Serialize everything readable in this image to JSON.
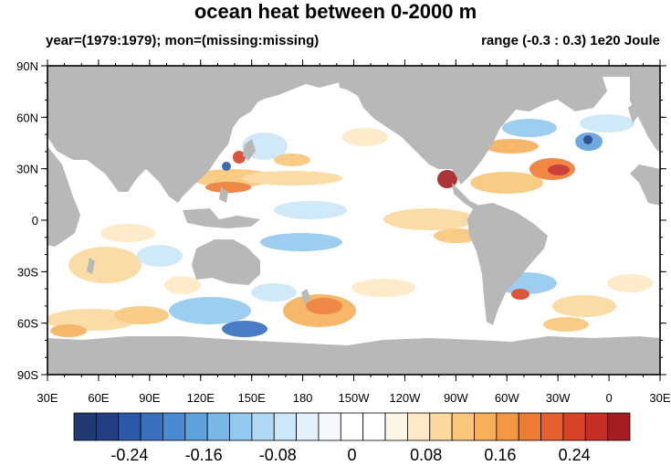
{
  "title": "ocean heat between 0-2000 m",
  "subtitle_left": "year=(1979:1979); mon=(missing:missing)",
  "subtitle_right": "range (-0.3 : 0.3) 1e20 Joule",
  "lat_labels": [
    "90N",
    "60N",
    "30N",
    "0",
    "30S",
    "60S",
    "90S"
  ],
  "lon_labels": [
    "30E",
    "60E",
    "90E",
    "120E",
    "150E",
    "180",
    "150W",
    "120W",
    "90W",
    "60W",
    "30W",
    "0",
    "30E"
  ],
  "colorbar": {
    "colors": [
      "#1e3a6e",
      "#223f83",
      "#2a5aa8",
      "#3670bf",
      "#4a8ad0",
      "#5fa1dc",
      "#78b7e6",
      "#94c9ee",
      "#b0d9f3",
      "#cbe7f8",
      "#e3f1fb",
      "#f5f9fd",
      "#ffffff",
      "#ffffff",
      "#fdf6e6",
      "#fde9c4",
      "#fbd99e",
      "#f9c77a",
      "#f6b05a",
      "#f39743",
      "#ee7b34",
      "#e5602c",
      "#d84327",
      "#c52d25",
      "#a41e21"
    ],
    "tick_labels": [
      "-0.24",
      "-0.16",
      "-0.08",
      "0",
      "0.08",
      "0.16",
      "0.24"
    ],
    "tick_values": [
      -0.24,
      -0.16,
      -0.08,
      0,
      0.08,
      0.16,
      0.24
    ],
    "range": [
      -0.3,
      0.3
    ]
  },
  "colors": {
    "land": "#b8b8b8",
    "ocean": "#ffffff"
  }
}
